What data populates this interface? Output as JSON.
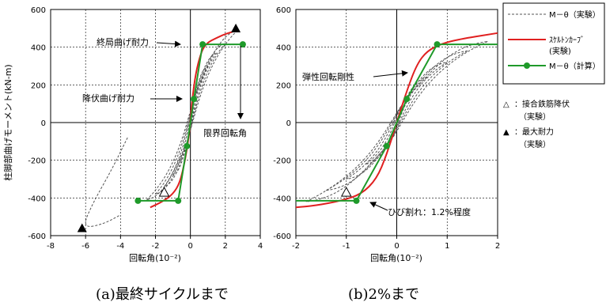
{
  "colors": {
    "experimental": "#555555",
    "skeleton": "#e02020",
    "calculated": "#1f9a2a",
    "grid": "#000000"
  },
  "captions": {
    "a": "(a)最終サイクルまで",
    "b": "(b)2%まで"
  },
  "legend": {
    "items": [
      {
        "label": "M－θ（実験）",
        "style": "dashed-gray"
      },
      {
        "label": "ｽｹﾙﾄﾝｶｰﾌﾞ",
        "sub": "(実験)",
        "style": "red-line"
      },
      {
        "label": "M－θ（計算）",
        "style": "green-marker"
      }
    ],
    "markers": [
      {
        "symbol": "△",
        "label": "：接合鉄筋降伏",
        "sub": "（実験）"
      },
      {
        "symbol": "▲",
        "label": "：最大耐力",
        "sub": "（実験）"
      }
    ]
  },
  "chart_data": [
    {
      "id": "a",
      "type": "line",
      "xlabel": "回転角(10⁻²)",
      "ylabel": "柱脚部曲げモーメント(kN-m)",
      "xlim": [
        -8,
        4
      ],
      "ylim": [
        -600,
        600
      ],
      "xticks": [
        "-8",
        "-6",
        "-4",
        "-2",
        "0",
        "2",
        "4"
      ],
      "yticks": [
        "-600",
        "-400",
        "-200",
        "0",
        "200",
        "400",
        "600"
      ],
      "grid": true,
      "annotations": [
        "終局曲げ耐力",
        "降伏曲げ耐力",
        "限界回転角"
      ],
      "series": [
        {
          "name": "ｽｹﾙﾄﾝｶｰﾌﾞ",
          "x": [
            -2.3,
            -1.6,
            -1.0,
            -0.6,
            -0.3,
            -0.1,
            0,
            0.1,
            0.3,
            0.6,
            0.9,
            1.5,
            2.0,
            2.7
          ],
          "y": [
            -450,
            -420,
            -380,
            -320,
            -200,
            -80,
            0,
            120,
            260,
            370,
            420,
            450,
            470,
            490
          ]
        },
        {
          "name": "M－θ（計算）",
          "x": [
            -3.0,
            -0.7,
            -0.2,
            0.2,
            0.7,
            3.0
          ],
          "y": [
            -415,
            -415,
            -125,
            125,
            415,
            415
          ]
        },
        {
          "name": "M－θ（実験）",
          "loops": [
            {
              "x": [
                -1.0,
                1.0,
                -1.0
              ],
              "y": [
                -280,
                300,
                -280
              ]
            },
            {
              "x": [
                -1.5,
                1.5,
                -1.5
              ],
              "y": [
                -340,
                370,
                -340
              ]
            },
            {
              "x": [
                -2.0,
                2.0,
                -2.0
              ],
              "y": [
                -380,
                420,
                -380
              ]
            },
            {
              "x": [
                -2.5,
                2.7,
                -2.5
              ],
              "y": [
                -410,
                490,
                -410
              ]
            }
          ],
          "tail": {
            "x": [
              -3.6,
              -4.5,
              -5.6,
              -6.2,
              -5.0,
              -4.0
            ],
            "y": [
              -80,
              -250,
              -430,
              -560,
              -540,
              -490
            ]
          }
        }
      ],
      "points": {
        "rebar_yield": [
          {
            "x": -1.5,
            "y": -370
          }
        ],
        "max_strength": [
          {
            "x": 2.6,
            "y": 500
          },
          {
            "x": -6.2,
            "y": -560
          }
        ]
      }
    },
    {
      "id": "b",
      "type": "line",
      "xlabel": "回転角(10⁻²)",
      "ylabel": "",
      "xlim": [
        -2,
        2
      ],
      "ylim": [
        -600,
        600
      ],
      "xticks": [
        "-2",
        "-1",
        "0",
        "1",
        "2"
      ],
      "yticks": [
        "-600",
        "-400",
        "-200",
        "0",
        "200",
        "400",
        "600"
      ],
      "grid": true,
      "annotations": [
        "弾性回転剛性",
        "ひび割れ：1.2%程度"
      ],
      "series": [
        {
          "name": "ｽｹﾙﾄﾝｶｰﾌﾞ",
          "x": [
            -2.0,
            -1.6,
            -1.1,
            -0.7,
            -0.4,
            -0.2,
            0,
            0.2,
            0.4,
            0.6,
            0.9,
            1.3,
            2.0
          ],
          "y": [
            -450,
            -440,
            -415,
            -380,
            -300,
            -170,
            0,
            170,
            310,
            380,
            420,
            445,
            475
          ]
        },
        {
          "name": "M－θ（計算）",
          "x": [
            -2.0,
            -0.8,
            -0.2,
            0.2,
            0.8,
            2.0
          ],
          "y": [
            -415,
            -415,
            -125,
            125,
            415,
            415
          ]
        },
        {
          "name": "M－θ（実験）",
          "loops": [
            {
              "x": [
                -0.6,
                0.6,
                -0.6
              ],
              "y": [
                -220,
                240,
                -220
              ]
            },
            {
              "x": [
                -1.0,
                1.0,
                -1.0
              ],
              "y": [
                -300,
                320,
                -300
              ]
            },
            {
              "x": [
                -1.4,
                1.4,
                -1.4
              ],
              "y": [
                -360,
                380,
                -360
              ]
            },
            {
              "x": [
                -1.8,
                1.8,
                -1.8
              ],
              "y": [
                -420,
                430,
                -420
              ]
            }
          ]
        }
      ],
      "points": {
        "rebar_yield": [
          {
            "x": -1.0,
            "y": -370
          }
        ]
      }
    }
  ]
}
